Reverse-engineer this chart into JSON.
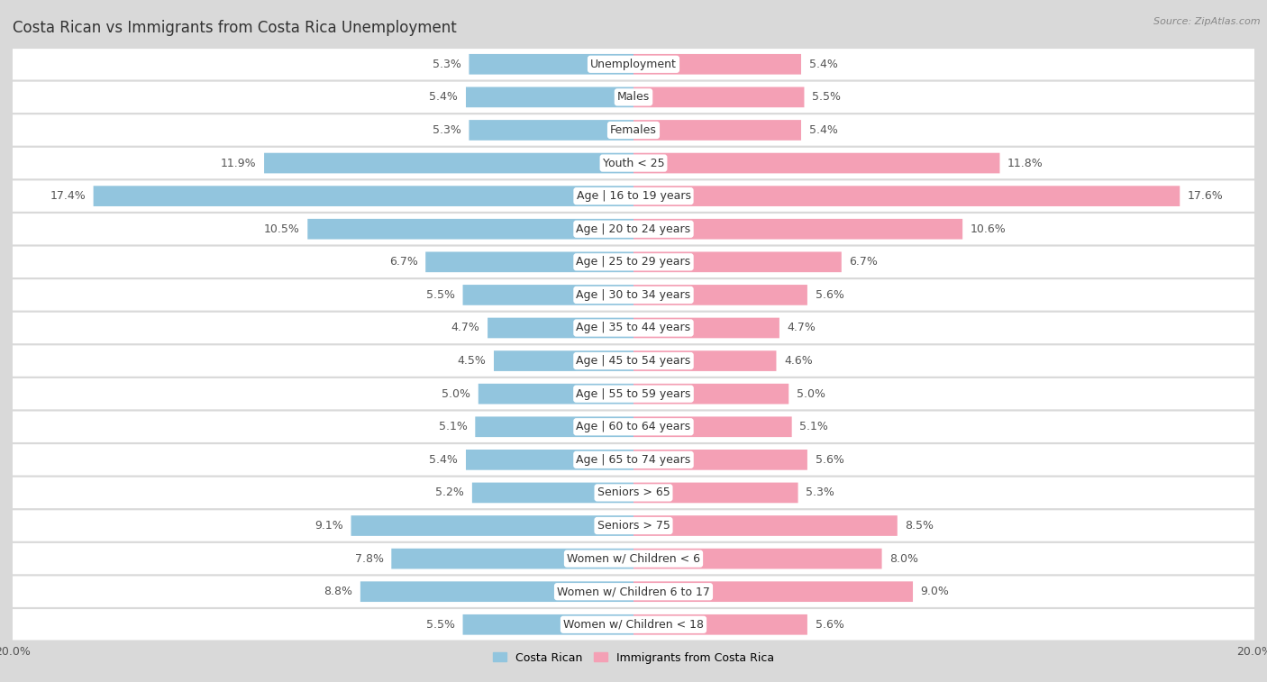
{
  "title": "Costa Rican vs Immigrants from Costa Rica Unemployment",
  "source": "Source: ZipAtlas.com",
  "categories": [
    "Unemployment",
    "Males",
    "Females",
    "Youth < 25",
    "Age | 16 to 19 years",
    "Age | 20 to 24 years",
    "Age | 25 to 29 years",
    "Age | 30 to 34 years",
    "Age | 35 to 44 years",
    "Age | 45 to 54 years",
    "Age | 55 to 59 years",
    "Age | 60 to 64 years",
    "Age | 65 to 74 years",
    "Seniors > 65",
    "Seniors > 75",
    "Women w/ Children < 6",
    "Women w/ Children 6 to 17",
    "Women w/ Children < 18"
  ],
  "costa_rican": [
    5.3,
    5.4,
    5.3,
    11.9,
    17.4,
    10.5,
    6.7,
    5.5,
    4.7,
    4.5,
    5.0,
    5.1,
    5.4,
    5.2,
    9.1,
    7.8,
    8.8,
    5.5
  ],
  "immigrants": [
    5.4,
    5.5,
    5.4,
    11.8,
    17.6,
    10.6,
    6.7,
    5.6,
    4.7,
    4.6,
    5.0,
    5.1,
    5.6,
    5.3,
    8.5,
    8.0,
    9.0,
    5.6
  ],
  "costa_rican_color": "#92c5de",
  "immigrants_color": "#f4a0b5",
  "bar_height": 0.62,
  "row_bg_color": "#ffffff",
  "fig_bg_color": "#d9d9d9",
  "row_border_color": "#cccccc",
  "legend_costa_rican": "Costa Rican",
  "legend_immigrants": "Immigrants from Costa Rica",
  "title_fontsize": 12,
  "label_fontsize": 9,
  "value_fontsize": 9,
  "source_fontsize": 8,
  "xlim_max": 20
}
